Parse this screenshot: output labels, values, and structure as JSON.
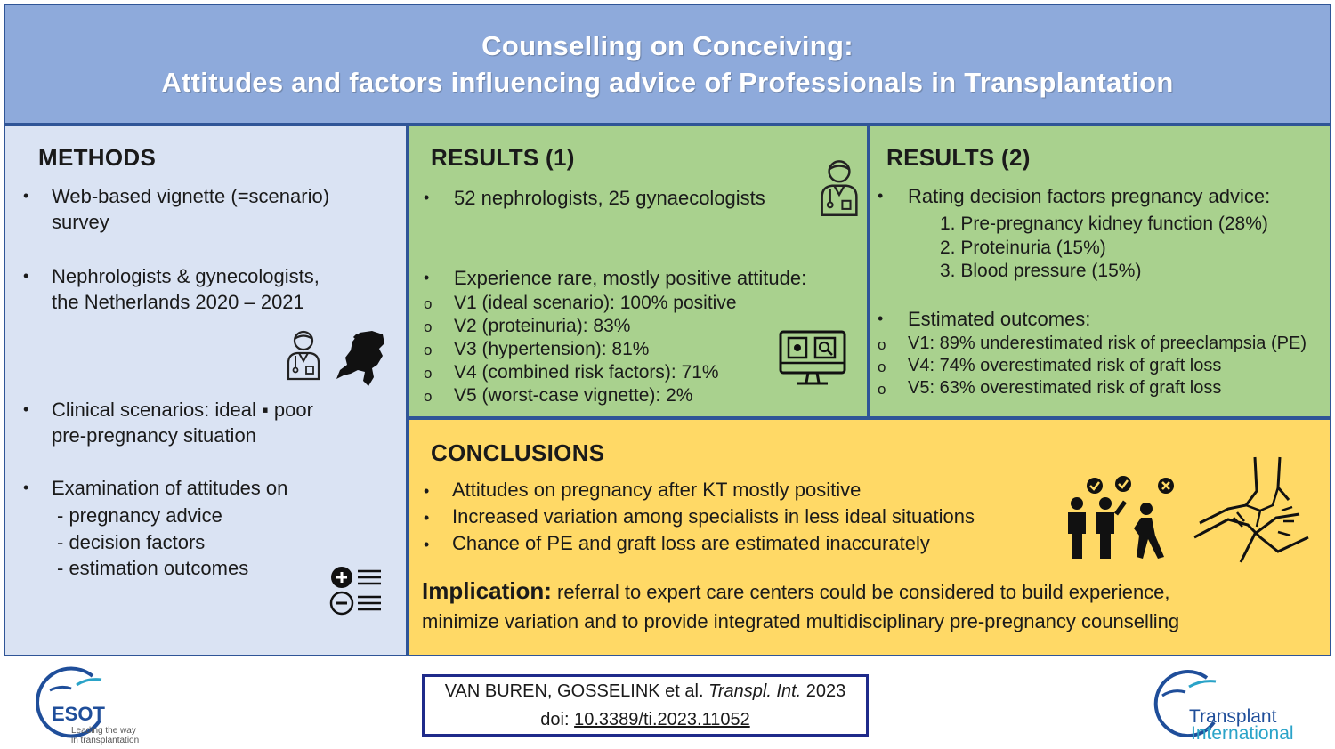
{
  "header": {
    "title_line1": "Counselling on Conceiving:",
    "title_line2": "Attitudes and factors influencing advice of Professionals in Transplantation"
  },
  "methods": {
    "title": "METHODS",
    "b1_l1": "Web-based vignette (=scenario)",
    "b1_l2": "survey",
    "b2_l1": "Nephrologists & gynecologists,",
    "b2_l2": "the Netherlands 2020 – 2021",
    "b3_l1": "Clinical scenarios: ideal ▪ poor",
    "b3_l2": "pre-pregnancy situation",
    "b4_l1": "Examination of attitudes on",
    "b4_sub1": "- pregnancy advice",
    "b4_sub2": "- decision factors",
    "b4_sub3": "- estimation outcomes"
  },
  "results1": {
    "title": "RESULTS (1)",
    "b1": "52 nephrologists, 25 gynaecologists",
    "b2": "Experience rare, mostly positive attitude:",
    "items": [
      "V1 (ideal scenario): 100% positive",
      "V2 (proteinuria): 83%",
      "V3 (hypertension): 81%",
      "V4 (combined risk factors): 71%",
      "V5 (worst-case vignette): 2%"
    ]
  },
  "results2": {
    "title": "RESULTS (2)",
    "b1": "Rating decision factors pregnancy advice:",
    "factors": [
      "1. Pre-pregnancy kidney function (28%)",
      "2. Proteinuria (15%)",
      "3. Blood pressure (15%)"
    ],
    "b2": "Estimated outcomes:",
    "outcomes": [
      "V1: 89% underestimated risk of preeclampsia (PE)",
      "V4: 74% overestimated risk of graft loss",
      "V5: 63% overestimated risk of graft loss"
    ]
  },
  "conclusions": {
    "title": "CONCLUSIONS",
    "items": [
      "Attitudes on pregnancy after KT mostly positive",
      "Increased variation among specialists in less ideal situations",
      "Chance of PE and graft loss are estimated inaccurately"
    ],
    "implication_label": "Implication:",
    "implication_l1": "referral to expert care centers could be considered to build experience,",
    "implication_l2": "minimize variation and to provide integrated multidisciplinary pre-pregnancy counselling"
  },
  "citation": {
    "authors": "VAN BUREN, GOSSELINK et al.",
    "journal": "Transpl. Int.",
    "year": "2023",
    "doi_label": "doi:",
    "doi": "10.3389/ti.2023.11052"
  },
  "logos": {
    "esot": "ESOT",
    "esot_tag1": "Leading the way",
    "esot_tag2": "in transplantation",
    "ti_line1": "Transplant",
    "ti_line2": "International"
  },
  "colors": {
    "header_bg": "#8eaadb",
    "methods_bg": "#dae3f3",
    "results_bg": "#a9d18e",
    "conclusions_bg": "#ffd966",
    "border": "#2f5597"
  }
}
